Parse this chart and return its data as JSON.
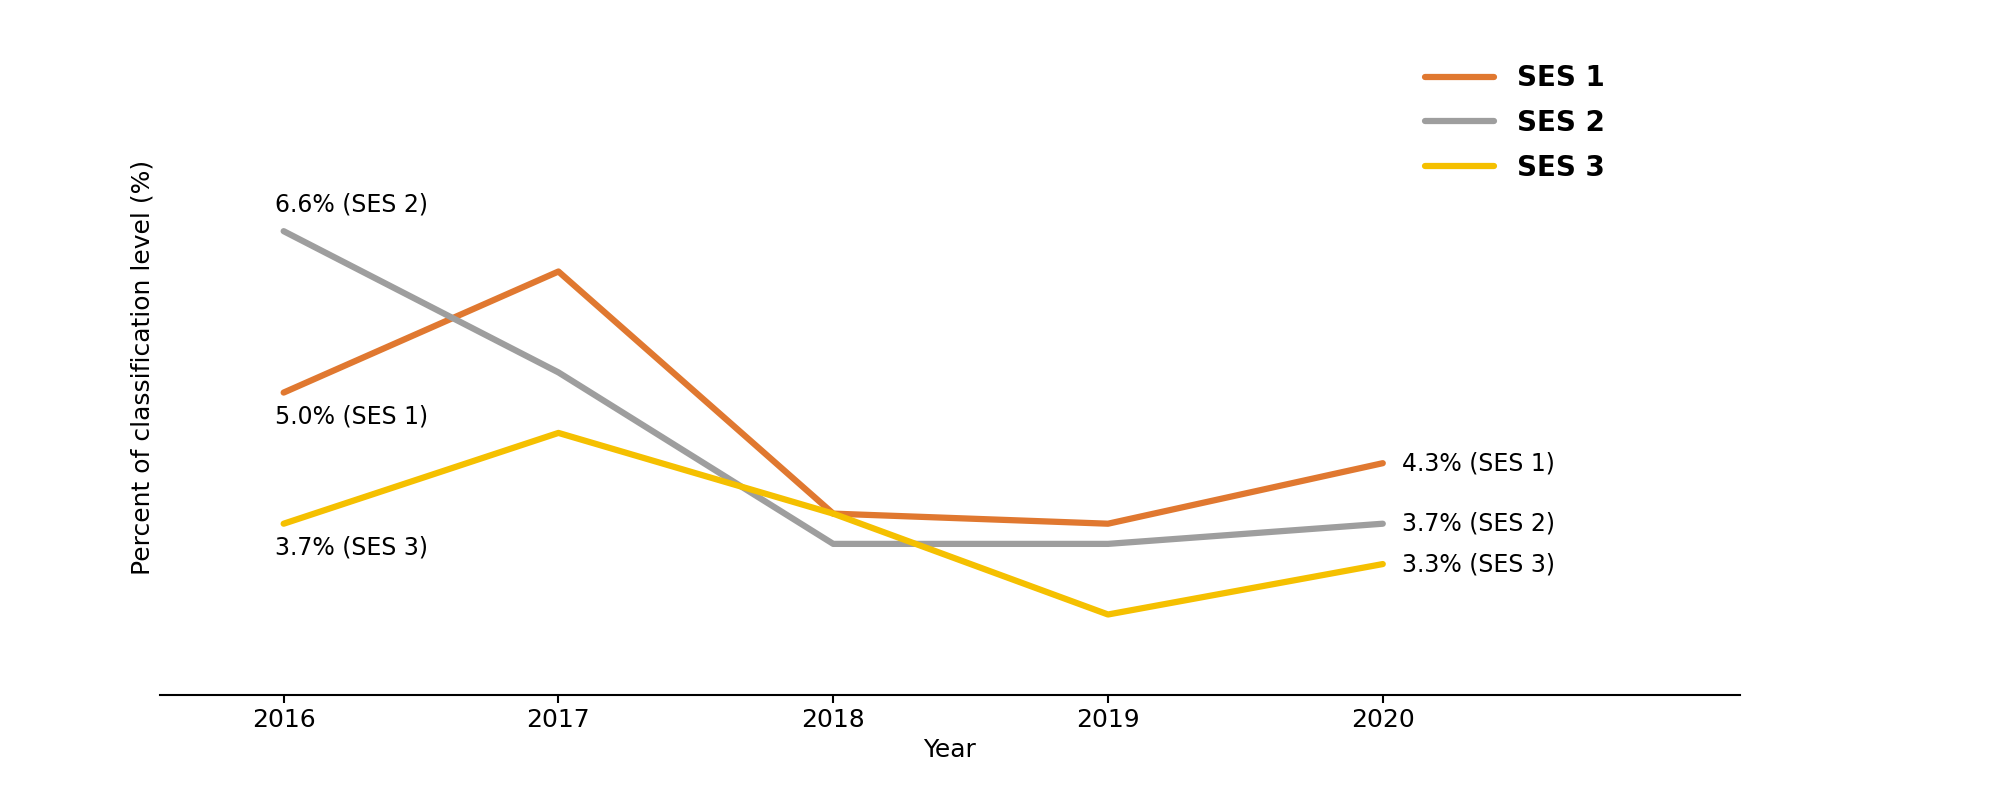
{
  "years": [
    2016,
    2017,
    2018,
    2019,
    2020
  ],
  "ses1": [
    5.0,
    6.2,
    3.8,
    3.7,
    4.3
  ],
  "ses2": [
    6.6,
    5.2,
    3.5,
    3.5,
    3.7
  ],
  "ses3": [
    3.7,
    4.6,
    3.8,
    2.8,
    3.3
  ],
  "ses1_color": "#E07830",
  "ses2_color": "#9E9E9E",
  "ses3_color": "#F5C000",
  "ylabel": "Percent of classification level (%)",
  "xlabel": "Year",
  "ylim": [
    2.0,
    8.5
  ],
  "xlim": [
    2015.55,
    2021.3
  ],
  "line_width": 4.5,
  "font_size_annotation": 17,
  "font_size_axis_label": 18,
  "font_size_tick": 18,
  "font_size_legend": 20,
  "legend_labels": [
    "SES 1",
    "SES 2",
    "SES 3"
  ]
}
